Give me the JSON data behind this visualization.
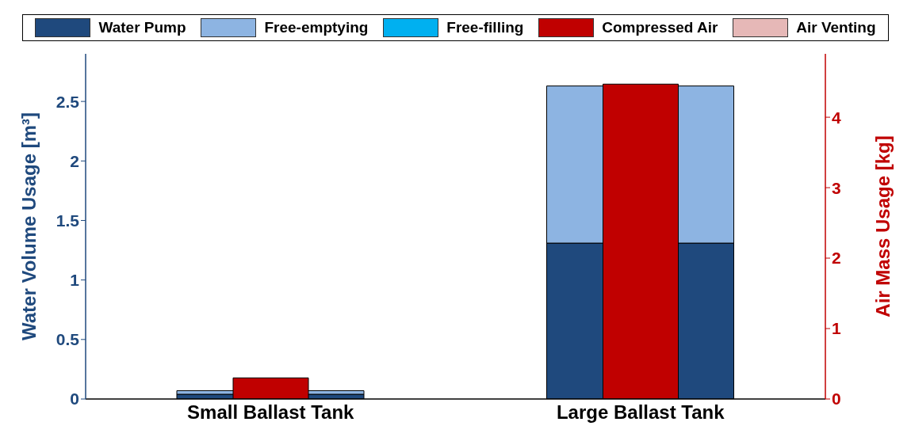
{
  "chart_data": {
    "type": "bar",
    "stacked": true,
    "categories": [
      "Small Ballast Tank",
      "Large Ballast Tank"
    ],
    "ylabel": "Water Volume Usage [m³]",
    "y2label": "Air Mass Usage [kg]",
    "ylim": [
      0,
      2.9
    ],
    "yticks": [
      0,
      0.5,
      1,
      1.5,
      2,
      2.5
    ],
    "y2lim": [
      0,
      4.9
    ],
    "y2ticks": [
      0,
      1,
      2,
      3,
      4
    ],
    "grid": false,
    "legend": "top",
    "series": [
      {
        "name": "Water Pump",
        "color": "#1f497d",
        "values": [
          0.04,
          1.31
        ]
      },
      {
        "name": "Free-emptying",
        "color": "#8db4e2",
        "values": [
          0.03,
          1.32
        ]
      },
      {
        "name": "Free-filling",
        "color": "#00b0f0",
        "values": [
          0,
          0
        ]
      },
      {
        "name": "Compressed Air",
        "color": "#c00000",
        "axis": "y2",
        "values": [
          0.3,
          4.47
        ]
      },
      {
        "name": "Air Venting",
        "color": "#e6b8b7",
        "axis": "y2",
        "values": [
          0,
          0
        ]
      }
    ]
  }
}
